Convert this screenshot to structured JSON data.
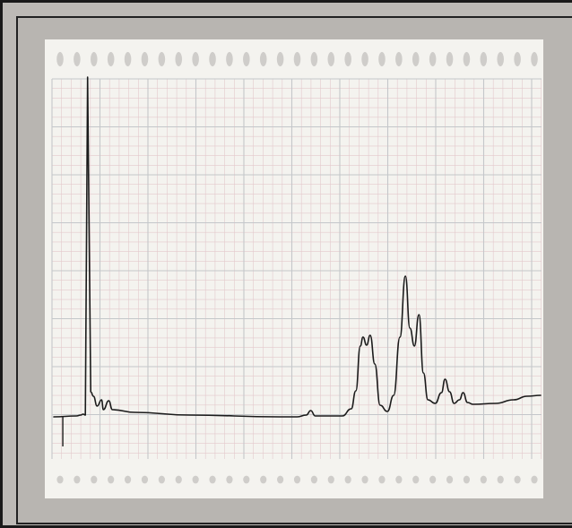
{
  "chart_data": {
    "type": "line",
    "title": "",
    "xlabel": "",
    "ylabel": "",
    "grid": true,
    "xlim": [
      0,
      54
    ],
    "ylim": [
      0,
      38
    ],
    "series": [
      {
        "name": "",
        "points": [
          [
            0,
            0.1
          ],
          [
            2.5,
            0.2
          ],
          [
            3.0,
            0.3
          ],
          [
            3.25,
            0.4
          ],
          [
            3.5,
            0.3
          ],
          [
            3.75,
            38.0
          ],
          [
            4.1,
            2.9
          ],
          [
            4.4,
            2.4
          ],
          [
            4.8,
            1.3
          ],
          [
            5.3,
            2.0
          ],
          [
            5.5,
            0.9
          ],
          [
            6.1,
            1.9
          ],
          [
            6.5,
            0.9
          ],
          [
            9.0,
            0.6
          ],
          [
            15.0,
            0.3
          ],
          [
            25.0,
            0.1
          ],
          [
            27.0,
            0.1
          ],
          [
            28.0,
            0.3
          ],
          [
            28.5,
            0.8
          ],
          [
            29.0,
            0.2
          ],
          [
            32.0,
            0.2
          ],
          [
            33.0,
            1.0
          ],
          [
            33.5,
            3.0
          ],
          [
            34.0,
            8.0
          ],
          [
            34.3,
            9.0
          ],
          [
            34.7,
            8.1
          ],
          [
            35.1,
            9.2
          ],
          [
            35.6,
            6.0
          ],
          [
            36.2,
            1.4
          ],
          [
            37.0,
            0.7
          ],
          [
            37.7,
            2.5
          ],
          [
            38.4,
            9.0
          ],
          [
            39.0,
            15.8
          ],
          [
            39.5,
            10.0
          ],
          [
            40.0,
            8.0
          ],
          [
            40.5,
            11.5
          ],
          [
            41.0,
            5.0
          ],
          [
            41.5,
            2.0
          ],
          [
            42.3,
            1.6
          ],
          [
            43.0,
            2.8
          ],
          [
            43.4,
            4.3
          ],
          [
            43.9,
            2.9
          ],
          [
            44.4,
            1.6
          ],
          [
            45.0,
            2.0
          ],
          [
            45.4,
            2.8
          ],
          [
            45.9,
            1.7
          ],
          [
            46.5,
            1.5
          ],
          [
            49.0,
            1.6
          ],
          [
            51.0,
            2.0
          ],
          [
            52.5,
            2.4
          ],
          [
            54.0,
            2.5
          ]
        ]
      }
    ],
    "baseline_marker_x": 1.0,
    "baseline_marker_drop": -3.2
  },
  "colors": {
    "frame": "#bdbab6",
    "paper": "#f4f3ef",
    "grid_minor": "#e3c9cc",
    "grid_major": "#c4c7ca",
    "sprocket_hole": "#cfcdca",
    "trace": "#1b1b1b"
  }
}
